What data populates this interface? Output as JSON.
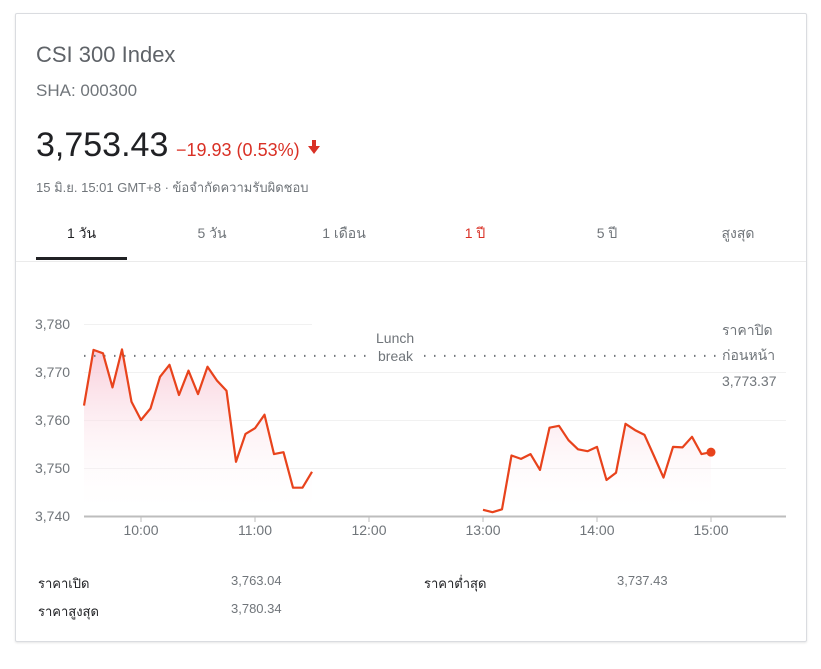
{
  "header": {
    "title": "CSI 300 Index",
    "ticker": "SHA: 000300",
    "price": "3,753.43",
    "change": "−19.93 (0.53%)",
    "direction_icon": "arrow-down-icon",
    "timestamp": "15 มิ.ย. 15:01 GMT+8",
    "separator": "·",
    "disclaimer": "ข้อจำกัดความรับผิดชอบ"
  },
  "tabs": [
    {
      "label": "1 วัน",
      "active": true
    },
    {
      "label": "5 วัน"
    },
    {
      "label": "1 เดือน"
    },
    {
      "label": "1 ปี"
    },
    {
      "label": "5 ปี"
    },
    {
      "label": "สูงสุด"
    }
  ],
  "colors": {
    "line": "#e8431c",
    "negative": "#d93025",
    "fill": "#fce4ec"
  },
  "chart_data": {
    "type": "line",
    "ylim": [
      3740,
      3780
    ],
    "yticks": [
      "3,740",
      "3,750",
      "3,760",
      "3,770",
      "3,780"
    ],
    "xticks": [
      "10:00",
      "11:00",
      "12:00",
      "13:00",
      "14:00",
      "15:00"
    ],
    "xrange": [
      "9:30",
      "15:40"
    ],
    "grid": true,
    "annotation": {
      "line1": "Lunch",
      "line2": "break"
    },
    "previous_close": {
      "label1": "ราคาปิด",
      "label2": "ก่อนหน้า",
      "value": 3773.37,
      "value_text": "3,773.37"
    },
    "series": [
      {
        "x": [
          "9:30",
          "9:35",
          "9:40",
          "9:45",
          "9:50",
          "9:55",
          "10:00",
          "10:05",
          "10:10",
          "10:15",
          "10:20",
          "10:25",
          "10:30",
          "10:35",
          "10:40",
          "10:45",
          "10:50",
          "10:55",
          "11:00",
          "11:05",
          "11:10",
          "11:15",
          "11:20",
          "11:25",
          "11:30"
        ],
        "y": [
          3763.0,
          3774.6,
          3773.9,
          3766.8,
          3774.7,
          3763.8,
          3760.0,
          3762.4,
          3769.0,
          3771.5,
          3765.2,
          3770.3,
          3765.4,
          3771.1,
          3768.2,
          3766.1,
          3751.3,
          3757.1,
          3758.3,
          3761.1,
          3752.9,
          3753.3,
          3745.9,
          3745.9,
          3749.2
        ]
      },
      {
        "x": [
          "13:00",
          "13:05",
          "13:10",
          "13:15",
          "13:20",
          "13:25",
          "13:30",
          "13:35",
          "13:40",
          "13:45",
          "13:50",
          "13:55",
          "14:00",
          "14:05",
          "14:10",
          "14:15",
          "14:20",
          "14:25",
          "14:30",
          "14:35",
          "14:40",
          "14:45",
          "14:50",
          "14:55",
          "15:00"
        ],
        "y": [
          3741.3,
          3740.8,
          3741.4,
          3752.6,
          3751.9,
          3752.9,
          3749.6,
          3758.4,
          3758.8,
          3755.8,
          3753.9,
          3753.5,
          3754.4,
          3747.5,
          3749.0,
          3759.2,
          3757.9,
          3756.9,
          3752.5,
          3748.0,
          3754.4,
          3754.3,
          3756.5,
          3752.9,
          3753.3
        ]
      }
    ]
  },
  "stats": [
    {
      "label": "ราคาเปิด",
      "value": "3,763.04"
    },
    {
      "label": "ราคาต่ำสุด",
      "value": "3,737.43"
    },
    {
      "label": "ราคาสูงสุด",
      "value": "3,780.34"
    }
  ]
}
